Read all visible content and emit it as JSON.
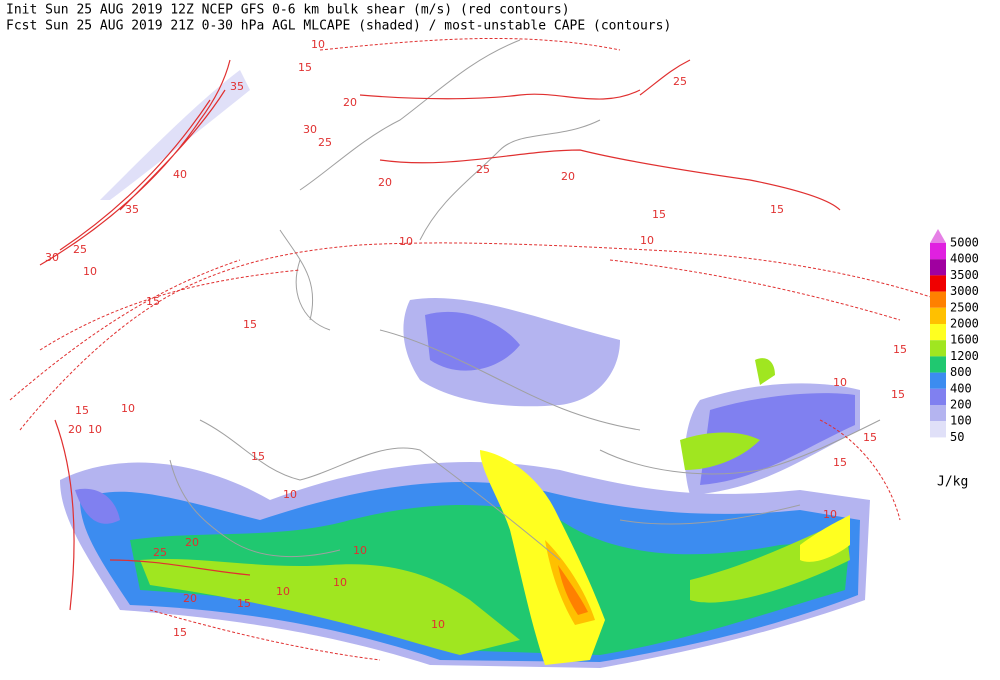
{
  "header": {
    "line1": "Init  Sun 25 AUG 2019 12Z  NCEP GFS 0-6 km bulk shear (m/s) (red contours)",
    "line2": "Fcst Sun 25 AUG 2019 21Z  0-30 hPa AGL MLCAPE (shaded) / most-unstable CAPE (contours)"
  },
  "legend": {
    "levels": [
      {
        "value": 5000,
        "color": "#e680e6"
      },
      {
        "value": 4000,
        "color": "#e020e0"
      },
      {
        "value": 3500,
        "color": "#a000a0"
      },
      {
        "value": 3000,
        "color": "#f00000"
      },
      {
        "value": 2500,
        "color": "#ff8000"
      },
      {
        "value": 2000,
        "color": "#ffc000"
      },
      {
        "value": 1600,
        "color": "#ffff20"
      },
      {
        "value": 1200,
        "color": "#a0e620"
      },
      {
        "value": 800,
        "color": "#20c870"
      },
      {
        "value": 400,
        "color": "#3c8cf0"
      },
      {
        "value": 200,
        "color": "#8080f0"
      },
      {
        "value": 100,
        "color": "#b4b4f0"
      },
      {
        "value": 50,
        "color": "#e0e0f8"
      }
    ],
    "unit": "J/kg"
  },
  "contour_labels": [
    10,
    15,
    25,
    35,
    20,
    30,
    25,
    40,
    20,
    25,
    20,
    35,
    15,
    15,
    10,
    10,
    30,
    25,
    10,
    15,
    15,
    15,
    15,
    10,
    15,
    10,
    20,
    10,
    15,
    10,
    10,
    25,
    20,
    10,
    10,
    10,
    20,
    15,
    10,
    15,
    15,
    15
  ]
}
